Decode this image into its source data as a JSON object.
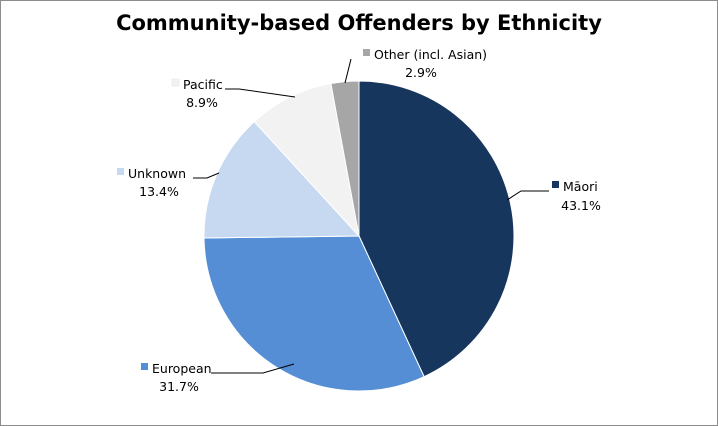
{
  "chart_data": {
    "type": "pie",
    "title": "Community-based Offenders by Ethnicity",
    "categories": [
      "Māori",
      "European",
      "Unknown",
      "Pacific",
      "Other (incl. Asian)"
    ],
    "values": [
      43.1,
      31.7,
      13.4,
      8.9,
      2.9
    ],
    "value_labels": [
      "43.1%",
      "31.7%",
      "13.4%",
      "8.9%",
      "2.9%"
    ],
    "colors": [
      "#17365d",
      "#558ed5",
      "#c6d9f1",
      "#f2f2f2",
      "#a6a6a6"
    ],
    "start_angle": "12 o'clock",
    "direction": "clockwise",
    "legend": "none (labels with leader lines)"
  }
}
